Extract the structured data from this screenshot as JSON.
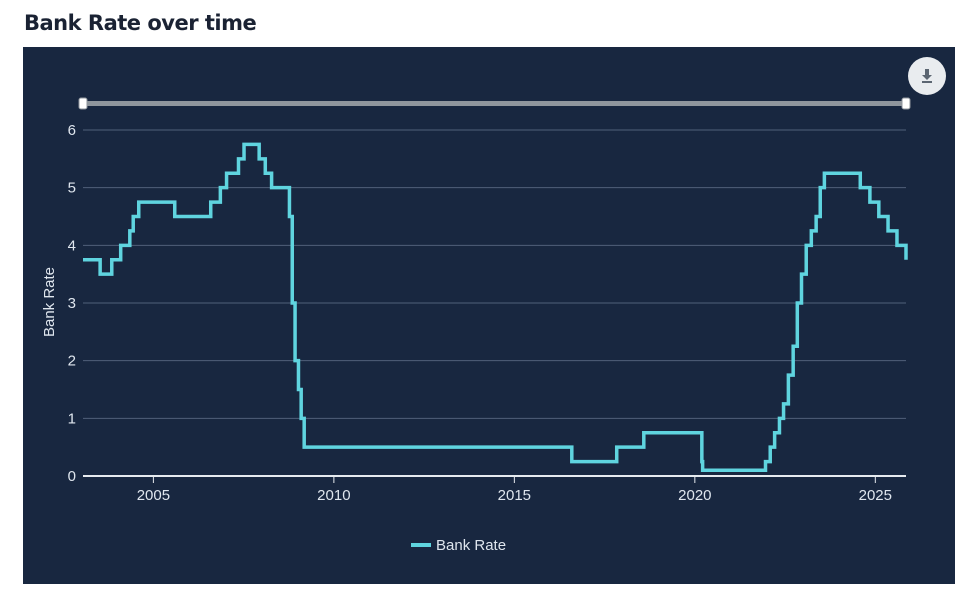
{
  "page": {
    "title": "Bank Rate over time"
  },
  "toolbar": {
    "download_icon": "download-icon"
  },
  "colors": {
    "background": "#182740",
    "line": "#5fd4df",
    "text": "#dfe6ee",
    "grid": "#50607a"
  },
  "chart_data": {
    "type": "line",
    "title": "",
    "xlabel": "",
    "ylabel": "Bank Rate",
    "xlim": [
      2003.05,
      2025.85
    ],
    "ylim": [
      0,
      6
    ],
    "x_ticks": [
      2005,
      2010,
      2015,
      2020,
      2025
    ],
    "y_ticks": [
      0,
      1,
      2,
      3,
      4,
      5,
      6
    ],
    "grid": true,
    "legend": "bottom-center",
    "step": true,
    "series": [
      {
        "name": "Bank Rate",
        "points": [
          [
            "2003-02-06",
            3.75
          ],
          [
            "2003-07-10",
            3.5
          ],
          [
            "2003-11-06",
            3.75
          ],
          [
            "2004-02-05",
            4.0
          ],
          [
            "2004-05-06",
            4.25
          ],
          [
            "2004-06-10",
            4.5
          ],
          [
            "2004-08-05",
            4.75
          ],
          [
            "2005-08-04",
            4.5
          ],
          [
            "2006-08-03",
            4.75
          ],
          [
            "2006-11-09",
            5.0
          ],
          [
            "2007-01-11",
            5.25
          ],
          [
            "2007-05-10",
            5.5
          ],
          [
            "2007-07-05",
            5.75
          ],
          [
            "2007-12-06",
            5.5
          ],
          [
            "2008-02-07",
            5.25
          ],
          [
            "2008-04-10",
            5.0
          ],
          [
            "2008-10-08",
            4.5
          ],
          [
            "2008-11-06",
            3.0
          ],
          [
            "2008-12-04",
            2.0
          ],
          [
            "2009-01-08",
            1.5
          ],
          [
            "2009-02-05",
            1.0
          ],
          [
            "2009-03-05",
            0.5
          ],
          [
            "2016-08-04",
            0.25
          ],
          [
            "2017-11-02",
            0.5
          ],
          [
            "2018-08-02",
            0.75
          ],
          [
            "2020-03-11",
            0.25
          ],
          [
            "2020-03-19",
            0.1
          ],
          [
            "2021-12-16",
            0.25
          ],
          [
            "2022-02-03",
            0.5
          ],
          [
            "2022-03-17",
            0.75
          ],
          [
            "2022-05-05",
            1.0
          ],
          [
            "2022-06-16",
            1.25
          ],
          [
            "2022-08-04",
            1.75
          ],
          [
            "2022-09-22",
            2.25
          ],
          [
            "2022-11-03",
            3.0
          ],
          [
            "2022-12-15",
            3.5
          ],
          [
            "2023-02-02",
            4.0
          ],
          [
            "2023-03-23",
            4.25
          ],
          [
            "2023-05-11",
            4.5
          ],
          [
            "2023-06-22",
            5.0
          ],
          [
            "2023-08-03",
            5.25
          ],
          [
            "2024-08-01",
            5.0
          ],
          [
            "2024-11-07",
            4.75
          ],
          [
            "2025-02-06",
            4.5
          ],
          [
            "2025-05-08",
            4.25
          ],
          [
            "2025-08-07",
            4.0
          ],
          [
            "2025-12-18",
            3.75
          ]
        ]
      }
    ]
  }
}
